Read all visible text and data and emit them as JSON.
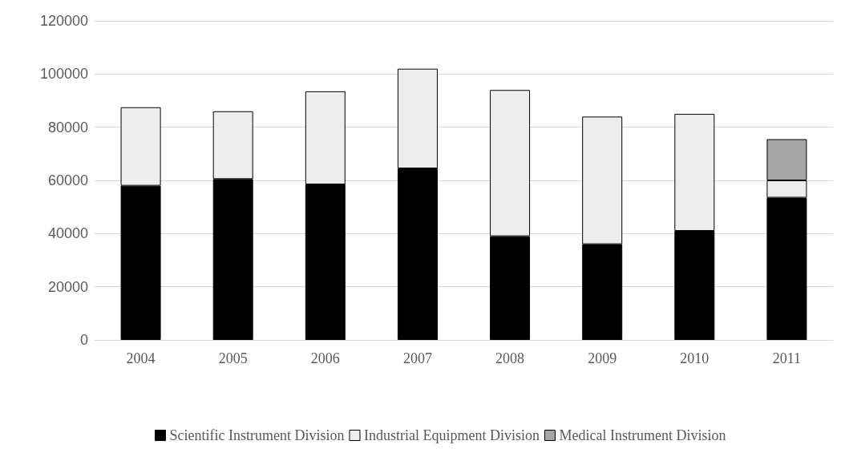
{
  "chart_data": {
    "type": "bar",
    "stacked": true,
    "categories": [
      "2004",
      "2005",
      "2006",
      "2007",
      "2008",
      "2009",
      "2010",
      "2011"
    ],
    "series": [
      {
        "name": "Scientific Instrument Division",
        "color": "#000000",
        "values": [
          58000,
          60500,
          58500,
          64500,
          39000,
          36000,
          41000,
          53500
        ]
      },
      {
        "name": "Industrial Equipment Division",
        "color": "#ededed",
        "values": [
          29500,
          25500,
          35000,
          37500,
          55000,
          48000,
          44000,
          6500
        ]
      },
      {
        "name": "Medical Instrument Division",
        "color": "#a6a6a6",
        "values": [
          null,
          null,
          null,
          null,
          null,
          null,
          null,
          15500
        ]
      }
    ],
    "ylim": [
      0,
      120000
    ],
    "yticks": [
      0,
      20000,
      40000,
      60000,
      80000,
      100000,
      120000
    ],
    "grid": "y",
    "legend": "bottom"
  }
}
